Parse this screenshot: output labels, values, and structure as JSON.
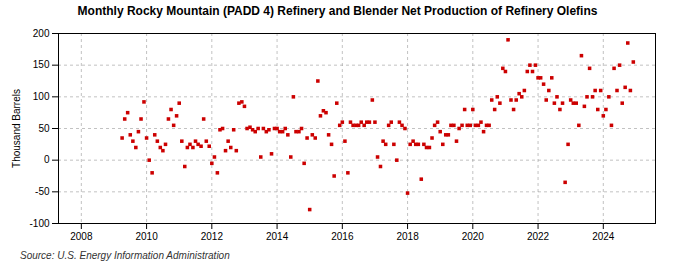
{
  "chart_data": {
    "type": "scatter",
    "title": "Monthly Rocky Mountain (PADD 4) Refinery and Blender Net Production of Refinery Olefins",
    "ylabel": "Thousand Barrels",
    "source": "Source: U.S. Energy Information Administration",
    "color": "#cc0000",
    "marker": "square",
    "grid": true,
    "xlim": [
      2007.3,
      2025.6
    ],
    "xticks": [
      2008,
      2010,
      2012,
      2014,
      2016,
      2018,
      2020,
      2022,
      2024
    ],
    "ylim": [
      -100,
      200
    ],
    "yticks": [
      -100,
      -50,
      0,
      50,
      100,
      150,
      200
    ],
    "x": [
      2009.25,
      2009.33,
      2009.42,
      2009.5,
      2009.58,
      2009.67,
      2009.75,
      2009.83,
      2009.92,
      2010.0,
      2010.08,
      2010.17,
      2010.25,
      2010.33,
      2010.42,
      2010.5,
      2010.58,
      2010.67,
      2010.75,
      2010.83,
      2010.92,
      2011.0,
      2011.08,
      2011.17,
      2011.25,
      2011.33,
      2011.42,
      2011.5,
      2011.58,
      2011.67,
      2011.75,
      2011.83,
      2011.92,
      2012.0,
      2012.08,
      2012.17,
      2012.25,
      2012.33,
      2012.42,
      2012.5,
      2012.58,
      2012.67,
      2012.75,
      2012.83,
      2012.92,
      2013.0,
      2013.08,
      2013.17,
      2013.25,
      2013.33,
      2013.42,
      2013.5,
      2013.58,
      2013.67,
      2013.75,
      2013.83,
      2013.92,
      2014.0,
      2014.08,
      2014.17,
      2014.25,
      2014.33,
      2014.42,
      2014.5,
      2014.58,
      2014.67,
      2014.75,
      2014.83,
      2014.92,
      2015.0,
      2015.08,
      2015.17,
      2015.25,
      2015.33,
      2015.42,
      2015.5,
      2015.58,
      2015.67,
      2015.75,
      2015.83,
      2015.92,
      2016.0,
      2016.08,
      2016.17,
      2016.25,
      2016.33,
      2016.42,
      2016.5,
      2016.58,
      2016.67,
      2016.75,
      2016.83,
      2016.92,
      2017.0,
      2017.08,
      2017.17,
      2017.25,
      2017.33,
      2017.42,
      2017.5,
      2017.58,
      2017.67,
      2017.75,
      2017.83,
      2017.92,
      2018.0,
      2018.08,
      2018.17,
      2018.25,
      2018.33,
      2018.42,
      2018.5,
      2018.58,
      2018.67,
      2018.75,
      2018.83,
      2018.92,
      2019.0,
      2019.08,
      2019.17,
      2019.25,
      2019.33,
      2019.42,
      2019.5,
      2019.58,
      2019.67,
      2019.75,
      2019.83,
      2019.92,
      2020.0,
      2020.08,
      2020.17,
      2020.25,
      2020.33,
      2020.42,
      2020.5,
      2020.58,
      2020.67,
      2020.75,
      2020.83,
      2020.92,
      2021.0,
      2021.08,
      2021.17,
      2021.25,
      2021.33,
      2021.42,
      2021.5,
      2021.58,
      2021.67,
      2021.75,
      2021.83,
      2021.92,
      2022.0,
      2022.08,
      2022.17,
      2022.25,
      2022.33,
      2022.42,
      2022.5,
      2022.58,
      2022.67,
      2022.75,
      2022.83,
      2022.92,
      2023.0,
      2023.08,
      2023.17,
      2023.25,
      2023.33,
      2023.42,
      2023.5,
      2023.58,
      2023.67,
      2023.75,
      2023.83,
      2023.92,
      2024.0,
      2024.08,
      2024.17,
      2024.25,
      2024.33,
      2024.42,
      2024.5,
      2024.58,
      2024.67,
      2024.75,
      2024.83,
      2024.92
    ],
    "values": [
      35,
      65,
      75,
      40,
      30,
      20,
      45,
      65,
      92,
      35,
      0,
      -20,
      40,
      30,
      20,
      15,
      25,
      65,
      80,
      55,
      70,
      90,
      30,
      -10,
      20,
      25,
      20,
      30,
      25,
      22,
      65,
      30,
      22,
      -5,
      5,
      -20,
      48,
      50,
      15,
      30,
      20,
      48,
      15,
      90,
      92,
      85,
      50,
      52,
      48,
      45,
      50,
      5,
      50,
      45,
      48,
      10,
      50,
      50,
      45,
      45,
      50,
      40,
      5,
      100,
      45,
      45,
      50,
      -5,
      35,
      -78,
      40,
      35,
      125,
      70,
      78,
      75,
      40,
      25,
      -25,
      90,
      55,
      60,
      30,
      -20,
      60,
      55,
      55,
      55,
      60,
      55,
      60,
      60,
      95,
      60,
      5,
      -10,
      30,
      25,
      55,
      60,
      25,
      0,
      60,
      55,
      50,
      -52,
      25,
      30,
      25,
      25,
      -30,
      25,
      20,
      20,
      35,
      55,
      60,
      45,
      25,
      40,
      40,
      55,
      55,
      30,
      50,
      55,
      80,
      55,
      55,
      80,
      55,
      55,
      60,
      45,
      55,
      55,
      95,
      80,
      100,
      90,
      145,
      140,
      190,
      95,
      80,
      95,
      105,
      100,
      110,
      140,
      150,
      140,
      150,
      130,
      130,
      120,
      95,
      110,
      130,
      90,
      100,
      80,
      90,
      -35,
      25,
      95,
      90,
      90,
      55,
      165,
      85,
      100,
      145,
      100,
      110,
      80,
      110,
      70,
      80,
      100,
      55,
      145,
      110,
      150,
      90,
      115,
      185,
      110,
      155
    ]
  }
}
